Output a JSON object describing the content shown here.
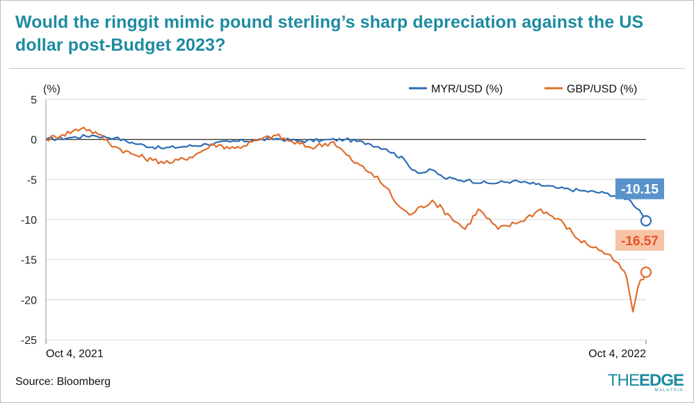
{
  "title": "Would the ringgit mimic pound sterling’s sharp depreciation against the US dollar post-Budget 2023?",
  "source": "Source: Bloomberg",
  "logo": {
    "the": "THE",
    "edge": "EDGE",
    "sub": "MALAYSIA"
  },
  "colors": {
    "title": "#1d8ba0",
    "myr": "#2a6db5",
    "gbp": "#e06c2a",
    "myr_badge": "#5a93cc",
    "gbp_badge": "#f7c3a6",
    "gbp_badge_text": "#e8542a"
  },
  "chart_data": {
    "type": "line",
    "ylabel": "(%)",
    "ylim": [
      -25,
      5
    ],
    "yticks": [
      5,
      0,
      -5,
      -10,
      -15,
      -20,
      -25
    ],
    "xlim": [
      "2021-10-04",
      "2022-10-04"
    ],
    "x_tick_labels": [
      "Oct 4, 2021",
      "Oct 4, 2022"
    ],
    "grid": "horizontal",
    "legend": "top-right",
    "series": [
      {
        "name": "MYR/USD (%)",
        "color": "#2a6db5",
        "end_label": "-10.15",
        "points": [
          [
            "2021-10-04",
            0
          ],
          [
            "2021-10-18",
            0.2
          ],
          [
            "2021-11-01",
            0.5
          ],
          [
            "2021-11-15",
            0.2
          ],
          [
            "2021-11-29",
            -0.6
          ],
          [
            "2021-12-13",
            -1.1
          ],
          [
            "2021-12-27",
            -0.9
          ],
          [
            "2022-01-10",
            -0.6
          ],
          [
            "2022-01-24",
            -0.3
          ],
          [
            "2022-02-07",
            -0.1
          ],
          [
            "2022-02-21",
            0.1
          ],
          [
            "2022-03-07",
            -0.2
          ],
          [
            "2022-03-21",
            -0.1
          ],
          [
            "2022-04-04",
            0.0
          ],
          [
            "2022-04-18",
            -0.5
          ],
          [
            "2022-04-29",
            -1.2
          ],
          [
            "2022-05-10",
            -2.5
          ],
          [
            "2022-05-13",
            -3.4
          ],
          [
            "2022-05-20",
            -4.2
          ],
          [
            "2022-05-27",
            -3.8
          ],
          [
            "2022-06-03",
            -4.8
          ],
          [
            "2022-06-17",
            -5.1
          ],
          [
            "2022-07-01",
            -5.5
          ],
          [
            "2022-07-15",
            -5.2
          ],
          [
            "2022-07-29",
            -5.6
          ],
          [
            "2022-08-12",
            -6.1
          ],
          [
            "2022-08-26",
            -6.4
          ],
          [
            "2022-09-09",
            -6.7
          ],
          [
            "2022-09-23",
            -7.4
          ],
          [
            "2022-09-30",
            -8.8
          ],
          [
            "2022-10-04",
            -10.15
          ]
        ]
      },
      {
        "name": "GBP/USD (%)",
        "color": "#e06c2a",
        "end_label": "-16.57",
        "points": [
          [
            "2021-10-04",
            0
          ],
          [
            "2021-10-14",
            0.6
          ],
          [
            "2021-10-27",
            1.5
          ],
          [
            "2021-11-05",
            0.6
          ],
          [
            "2021-11-15",
            -0.9
          ],
          [
            "2021-11-25",
            -1.8
          ],
          [
            "2021-12-08",
            -2.6
          ],
          [
            "2021-12-20",
            -2.9
          ],
          [
            "2022-01-03",
            -1.9
          ],
          [
            "2022-01-14",
            -0.6
          ],
          [
            "2022-01-27",
            -1.1
          ],
          [
            "2022-02-10",
            -0.1
          ],
          [
            "2022-02-21",
            0.5
          ],
          [
            "2022-03-01",
            -0.2
          ],
          [
            "2022-03-14",
            -1.0
          ],
          [
            "2022-03-28",
            -0.3
          ],
          [
            "2022-04-08",
            -2.6
          ],
          [
            "2022-04-20",
            -4.2
          ],
          [
            "2022-04-29",
            -6.0
          ],
          [
            "2022-05-06",
            -8.2
          ],
          [
            "2022-05-13",
            -9.4
          ],
          [
            "2022-05-27",
            -7.6
          ],
          [
            "2022-06-07",
            -9.6
          ],
          [
            "2022-06-16",
            -11.2
          ],
          [
            "2022-06-24",
            -8.7
          ],
          [
            "2022-07-06",
            -11.2
          ],
          [
            "2022-07-20",
            -10.2
          ],
          [
            "2022-08-01",
            -8.7
          ],
          [
            "2022-08-15",
            -10.5
          ],
          [
            "2022-08-24",
            -12.5
          ],
          [
            "2022-09-07",
            -13.9
          ],
          [
            "2022-09-16",
            -15.3
          ],
          [
            "2022-09-22",
            -17.0
          ],
          [
            "2022-09-26",
            -21.5
          ],
          [
            "2022-09-29",
            -18.5
          ],
          [
            "2022-10-04",
            -16.57
          ]
        ]
      }
    ]
  }
}
